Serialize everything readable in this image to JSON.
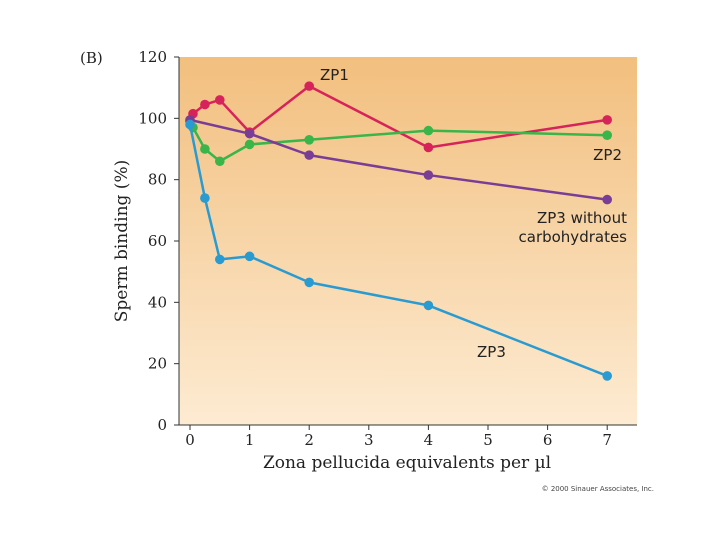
{
  "panel_label": "(B)",
  "copyright": "© 2000 Sinauer Associates, Inc.",
  "colors": {
    "bg_top": "#f2bf7e",
    "bg_bottom": "#fdebd2",
    "zp1": "#d6245b",
    "zp2": "#39b54a",
    "zp3_no_carb": "#7a3d96",
    "zp3": "#2a9bd1",
    "axis": "#333333"
  },
  "chart_data": {
    "type": "line",
    "title": "",
    "xlabel": "Zona pellucida equivalents per µl",
    "ylabel": "Sperm binding (%)",
    "xlim": [
      -0.2,
      7.5
    ],
    "ylim": [
      0,
      120
    ],
    "x_ticks": [
      0,
      1,
      2,
      3,
      4,
      5,
      6,
      7
    ],
    "x_tick_labels": [
      "0",
      "1",
      "2",
      "3",
      "4",
      "5",
      "6",
      "7"
    ],
    "y_ticks": [
      0,
      20,
      40,
      60,
      80,
      100,
      120
    ],
    "y_tick_labels": [
      "0",
      "20",
      "40",
      "60",
      "80",
      "100",
      "120"
    ],
    "grid": false,
    "series": [
      {
        "name": "ZP1",
        "label_lines": [
          "ZP1"
        ],
        "color_key": "zp1",
        "x": [
          0,
          0.05,
          0.25,
          0.5,
          1,
          2,
          4,
          7
        ],
        "y": [
          99,
          101.5,
          104.5,
          106,
          95.5,
          110.5,
          90.5,
          99.5
        ]
      },
      {
        "name": "ZP2",
        "label_lines": [
          "ZP2"
        ],
        "color_key": "zp2",
        "x": [
          0,
          0.05,
          0.25,
          0.5,
          1,
          2,
          4,
          7
        ],
        "y": [
          99,
          97,
          90,
          86,
          91.5,
          93,
          96,
          94.5
        ]
      },
      {
        "name": "ZP3 without carbohydrates",
        "label_lines": [
          "ZP3 without",
          "carbohydrates"
        ],
        "color_key": "zp3_no_carb",
        "x": [
          0,
          1,
          2,
          4,
          7
        ],
        "y": [
          99.5,
          95,
          88,
          81.5,
          73.5
        ]
      },
      {
        "name": "ZP3",
        "label_lines": [
          "ZP3"
        ],
        "color_key": "zp3",
        "x": [
          0,
          0.25,
          0.5,
          1,
          2,
          4,
          7
        ],
        "y": [
          98,
          74,
          54,
          55,
          46.5,
          39,
          16
        ]
      }
    ]
  }
}
